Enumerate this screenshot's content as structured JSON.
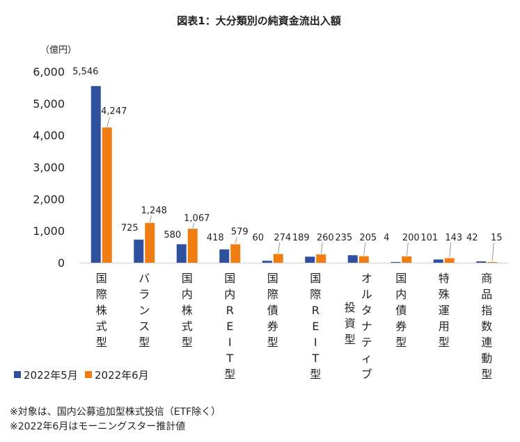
{
  "chart_data": {
    "type": "bar",
    "title": "図表1：大分類別の純資金流出入額",
    "ylabel": "（億円）",
    "ylim": [
      0,
      6000
    ],
    "yticks": [
      0,
      1000,
      2000,
      3000,
      4000,
      5000,
      6000
    ],
    "ytick_labels": [
      "0",
      "1,000",
      "2,000",
      "3,000",
      "4,000",
      "5,000",
      "6,000"
    ],
    "categories": [
      [
        "国際株式型"
      ],
      [
        "バランス型"
      ],
      [
        "国内株式型"
      ],
      [
        "国内REIT型"
      ],
      [
        "国際債券型"
      ],
      [
        "国際REIT型"
      ],
      [
        "投資型",
        "オルタナティブ"
      ],
      [
        "国内債券型"
      ],
      [
        "特殊運用型"
      ],
      [
        "商品指数連動型"
      ]
    ],
    "series": [
      {
        "name": "2022年5月",
        "color": "#2f4f9f",
        "values": [
          5546,
          725,
          580,
          418,
          60,
          189,
          235,
          4,
          101,
          42
        ],
        "labels": [
          "5,546",
          "725",
          "580",
          "418",
          "60",
          "189",
          "235",
          "4",
          "101",
          "42"
        ]
      },
      {
        "name": "2022年6月",
        "color": "#f07d12",
        "values": [
          4247,
          1248,
          1067,
          579,
          274,
          260,
          205,
          200,
          143,
          15
        ],
        "labels": [
          "4,247",
          "1,248",
          "1,067",
          "579",
          "274",
          "260",
          "205",
          "200",
          "143",
          "15"
        ]
      }
    ],
    "legend_position": "bottom-left"
  },
  "notes": [
    "※対象は、国内公募追加型株式投信（ETF除く）",
    "※2022年6月はモーニングスター推計値"
  ]
}
